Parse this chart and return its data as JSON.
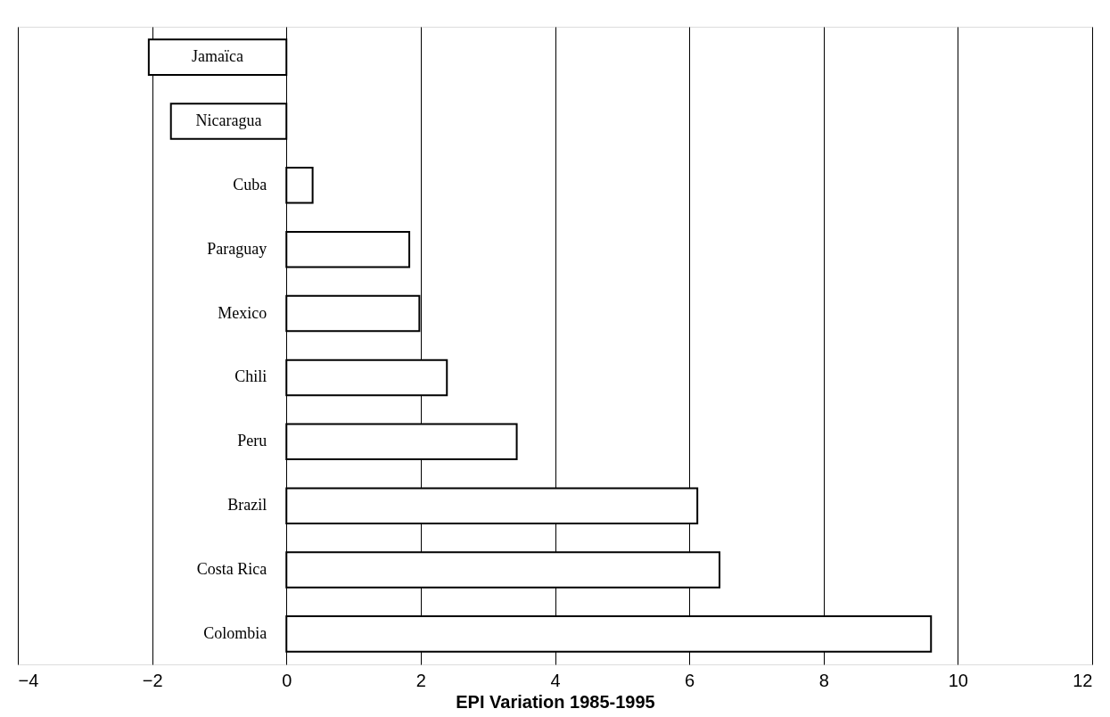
{
  "chart_data": {
    "type": "bar",
    "orientation": "horizontal",
    "xlabel": "EPI Variation 1985-1995",
    "categories": [
      "Jamaïca",
      "Nicaragua",
      "Cuba",
      "Paraguay",
      "Mexico",
      "Chili",
      "Peru",
      "Brazil",
      "Costa Rica",
      "Colombia"
    ],
    "values": [
      -2.05,
      -1.72,
      0.39,
      1.83,
      1.98,
      2.39,
      3.43,
      6.12,
      6.45,
      9.6
    ],
    "color": "#ffffff",
    "xlim": [
      -4,
      12
    ],
    "xticks": [
      -4,
      -2,
      0,
      2,
      4,
      6,
      8,
      10,
      12
    ],
    "grid": "x"
  }
}
